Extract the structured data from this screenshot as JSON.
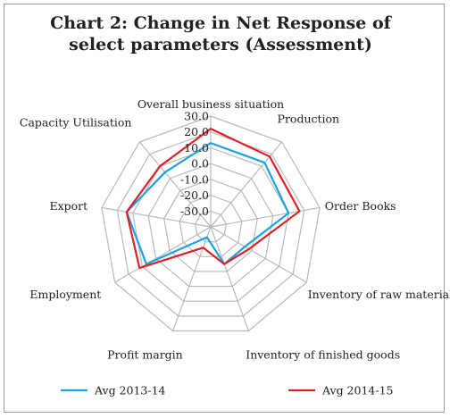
{
  "chart_data": {
    "type": "radar",
    "title_line1": "Chart 2: Change in Net Response of",
    "title_line2": "select parameters (Assessment)",
    "axes": [
      "Overall business situation",
      "Production",
      "Order Books",
      "Inventory of raw material",
      "Inventory of finished goods",
      "Profit margin",
      "Employment",
      "Export",
      "Capacity Utilisation"
    ],
    "ticks": [
      "30.0",
      "20.0",
      "10.0",
      "0.0",
      "-10.0",
      "-20.0",
      "-30.0"
    ],
    "range": [
      -40,
      30
    ],
    "series": [
      {
        "name": "Avg 2013-14",
        "color": "#1aa3dc",
        "values": [
          13,
          13,
          10,
          -15,
          -15,
          -33,
          7,
          14,
          5
        ]
      },
      {
        "name": "Avg 2014-15",
        "color": "#e01f26",
        "values": [
          22,
          18,
          17,
          -12,
          -15,
          -26,
          12,
          14,
          10
        ]
      }
    ],
    "legend_position": "bottom"
  }
}
